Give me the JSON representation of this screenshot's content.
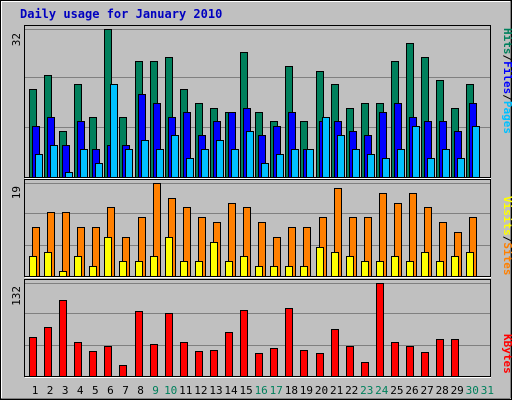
{
  "title": "Daily usage for January 2010",
  "colors": {
    "background": "#c0c0c0",
    "title": "#0000c0",
    "hits": "#00805c",
    "files": "#0000ff",
    "pages": "#00c0ff",
    "visits": "#ffff00",
    "sites": "#ff8000",
    "kbytes": "#ff0000",
    "weekday_label": "#000000",
    "weekend_label": "#00805c"
  },
  "labels": {
    "panel1_max": "32",
    "panel2_max": "19",
    "panel3_max": "132",
    "legend_hits": "Hits",
    "legend_files": "Files",
    "legend_pages": "Pages",
    "legend_visits": "Visits",
    "legend_sites": "Sites",
    "legend_kbytes": "KBytes",
    "slash": "/"
  },
  "chart_data": {
    "type": "bar",
    "title": "Daily usage for January 2010",
    "categories": [
      "1",
      "2",
      "3",
      "4",
      "5",
      "6",
      "7",
      "8",
      "9",
      "10",
      "11",
      "12",
      "13",
      "14",
      "15",
      "16",
      "17",
      "18",
      "19",
      "20",
      "21",
      "22",
      "23",
      "24",
      "25",
      "26",
      "27",
      "28",
      "29",
      "30",
      "31"
    ],
    "weekend_days": [
      "9",
      "10",
      "16",
      "17",
      "23",
      "24",
      "30",
      "31"
    ],
    "panels": [
      {
        "name": "hits-files-pages",
        "ymax": 32,
        "ylabel": "Pages / Files / Hits",
        "series": [
          {
            "name": "Hits",
            "values": [
              19,
              22,
              10,
              20,
              13,
              32,
              13,
              25,
              25,
              26,
              19,
              16,
              15,
              14,
              27,
              14,
              12,
              24,
              12,
              23,
              20,
              15,
              16,
              16,
              25,
              29,
              26,
              21,
              15,
              20,
              0
            ]
          },
          {
            "name": "Files",
            "values": [
              11,
              13,
              7,
              12,
              6,
              7,
              7,
              18,
              16,
              13,
              14,
              9,
              12,
              14,
              15,
              9,
              11,
              14,
              6,
              12,
              12,
              10,
              9,
              14,
              16,
              13,
              12,
              12,
              10,
              16,
              0
            ]
          },
          {
            "name": "Pages",
            "values": [
              5,
              7,
              1,
              6,
              3,
              20,
              6,
              8,
              6,
              9,
              4,
              6,
              8,
              6,
              10,
              3,
              5,
              6,
              6,
              13,
              9,
              6,
              5,
              4,
              6,
              11,
              4,
              6,
              4,
              11,
              0
            ]
          }
        ]
      },
      {
        "name": "visits-sites",
        "ymax": 19,
        "ylabel": "Sites / Visits",
        "series": [
          {
            "name": "Sites",
            "values": [
              10,
              13,
              13,
              10,
              10,
              14,
              8,
              12,
              19,
              16,
              14,
              12,
              11,
              15,
              14,
              11,
              8,
              10,
              10,
              12,
              18,
              12,
              12,
              17,
              15,
              17,
              14,
              11,
              9,
              12,
              0
            ]
          },
          {
            "name": "Visits",
            "values": [
              4,
              5,
              1,
              4,
              2,
              8,
              3,
              3,
              4,
              8,
              3,
              3,
              7,
              3,
              4,
              2,
              2,
              2,
              2,
              6,
              5,
              4,
              3,
              3,
              4,
              3,
              5,
              3,
              4,
              5,
              0
            ]
          }
        ]
      },
      {
        "name": "kbytes",
        "ymax": 132,
        "ylabel": "KBytes",
        "series": [
          {
            "name": "KBytes",
            "values": [
              55,
              70,
              108,
              48,
              35,
              42,
              15,
              92,
              46,
              90,
              48,
              35,
              37,
              63,
              94,
              32,
              40,
              96,
              37,
              32,
              66,
              43,
              20,
              132,
              48,
              42,
              34,
              52,
              52,
              0,
              0
            ]
          }
        ]
      }
    ]
  }
}
